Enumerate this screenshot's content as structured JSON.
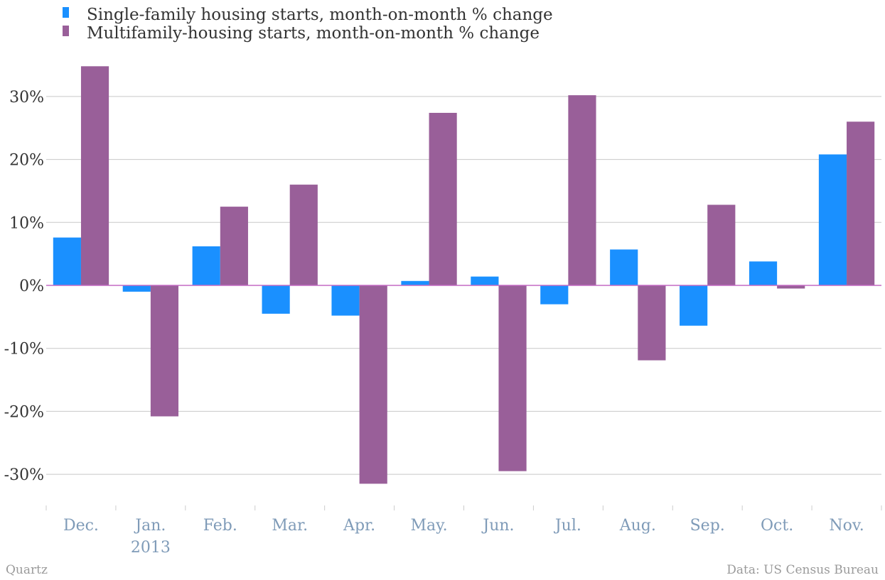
{
  "chart_data": {
    "type": "bar",
    "title": "",
    "xlabel": "",
    "ylabel": "",
    "categories": [
      "Dec.",
      "Jan.",
      "Feb.",
      "Mar.",
      "Apr.",
      "May.",
      "Jun.",
      "Jul.",
      "Aug.",
      "Sep.",
      "Oct.",
      "Nov."
    ],
    "category_sublabels": [
      "",
      "2013",
      "",
      "",
      "",
      "",
      "",
      "",
      "",
      "",
      "",
      ""
    ],
    "series": [
      {
        "name": "Single-family housing starts, month-on-month % change",
        "color": "#1a90ff",
        "values": [
          7.6,
          -1.0,
          6.2,
          -4.5,
          -4.8,
          0.7,
          1.4,
          -3.0,
          5.7,
          -6.4,
          3.8,
          20.8
        ]
      },
      {
        "name": "Multifamily-housing starts, month-on-month % change",
        "color": "#995f99",
        "values": [
          34.8,
          -20.8,
          12.5,
          16.0,
          -31.5,
          27.4,
          -29.5,
          30.2,
          -11.9,
          12.8,
          -0.5,
          26.0
        ]
      }
    ],
    "ylim": [
      -35,
      35
    ],
    "yticks": [
      30,
      20,
      10,
      0,
      -10,
      -20,
      -30
    ],
    "ytick_labels": [
      "30%",
      "20%",
      "10%",
      "0%",
      "-10%",
      "-20%",
      "-30%"
    ],
    "grid": true,
    "legend": "top-left"
  },
  "footer": {
    "source_left": "Quartz",
    "source_right": "Data: US Census Bureau"
  }
}
